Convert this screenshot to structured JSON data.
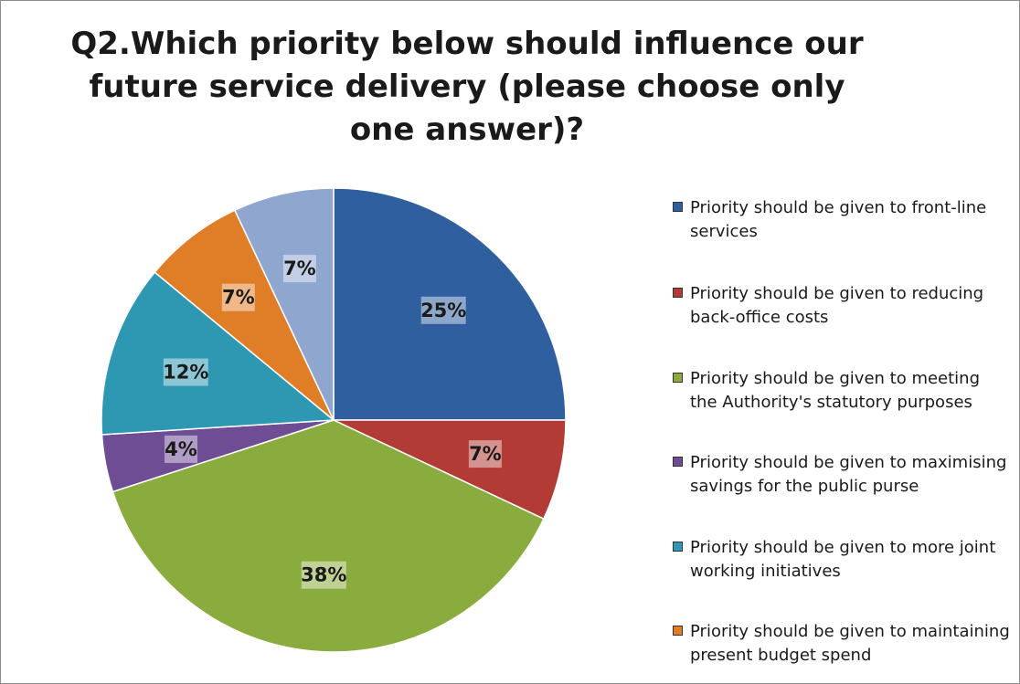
{
  "chart_data": {
    "type": "pie",
    "title": "Q2.Which priority below should influence our future service delivery (please choose only one answer)?",
    "slices": [
      {
        "label": "Priority should be given to front-line services",
        "value": 25,
        "display": "25%",
        "color": "#2f5f9e"
      },
      {
        "label": "Priority should be given to reducing back-office costs",
        "value": 7,
        "display": "7%",
        "color": "#b23b36"
      },
      {
        "label": "Priority should be given to meeting the Authority's statutory purposes",
        "value": 38,
        "display": "38%",
        "color": "#8aac3e"
      },
      {
        "label": "Priority should be given to maximising savings for the public purse",
        "value": 4,
        "display": "4%",
        "color": "#6e4d95"
      },
      {
        "label": "Priority should be given to more joint working initiatives",
        "value": 12,
        "display": "12%",
        "color": "#2e97b1"
      },
      {
        "label": "Priority should be given to maintaining present budget spend",
        "value": 7,
        "display": "7%",
        "color": "#e07e28"
      },
      {
        "label": "",
        "value": 7,
        "display": "7%",
        "color": "#8fa6cf"
      }
    ],
    "legend_position": "right"
  }
}
